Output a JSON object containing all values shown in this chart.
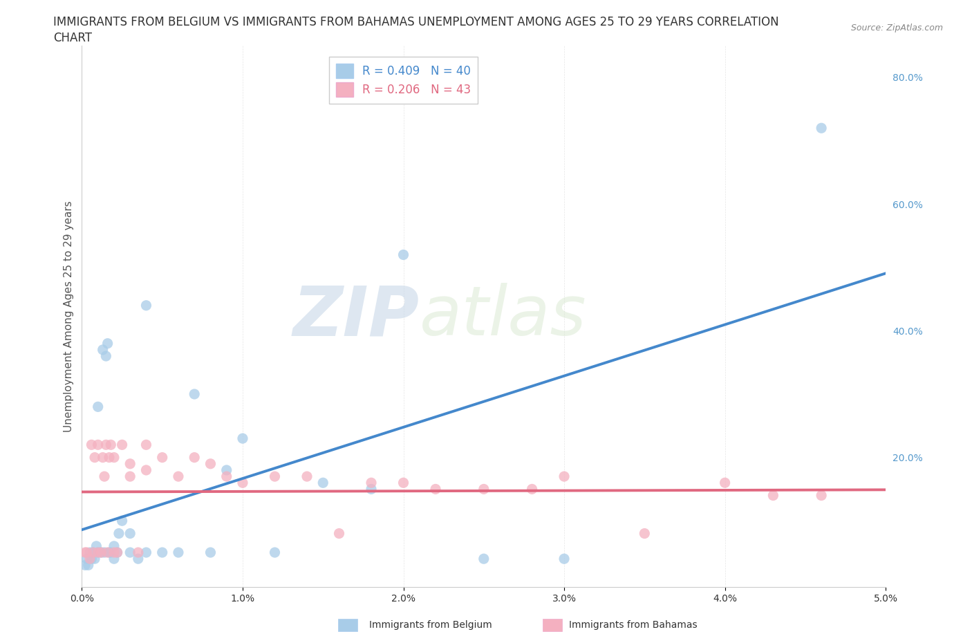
{
  "title_line1": "IMMIGRANTS FROM BELGIUM VS IMMIGRANTS FROM BAHAMAS UNEMPLOYMENT AMONG AGES 25 TO 29 YEARS CORRELATION",
  "title_line2": "CHART",
  "source_text": "Source: ZipAtlas.com",
  "ylabel": "Unemployment Among Ages 25 to 29 years",
  "xlim": [
    0.0,
    0.05
  ],
  "ylim": [
    -0.005,
    0.85
  ],
  "xticks": [
    0.0,
    0.01,
    0.02,
    0.03,
    0.04,
    0.05
  ],
  "xticklabels": [
    "0.0%",
    "1.0%",
    "2.0%",
    "3.0%",
    "4.0%",
    "5.0%"
  ],
  "yticks_right": [
    0.0,
    0.2,
    0.4,
    0.6,
    0.8
  ],
  "yticklabels_right": [
    "",
    "20.0%",
    "40.0%",
    "60.0%",
    "80.0%"
  ],
  "belgium_R": 0.409,
  "belgium_N": 40,
  "bahamas_R": 0.206,
  "bahamas_N": 43,
  "belgium_color": "#a8cce8",
  "bahamas_color": "#f4b0c0",
  "belgium_line_color": "#4488cc",
  "bahamas_line_color": "#e06880",
  "right_axis_color": "#5599cc",
  "background_color": "#ffffff",
  "grid_color": "#cccccc",
  "belgium_x": [
    0.0002,
    0.0003,
    0.0004,
    0.0005,
    0.0006,
    0.0007,
    0.0008,
    0.0009,
    0.001,
    0.001,
    0.0012,
    0.0013,
    0.0014,
    0.0015,
    0.0016,
    0.0017,
    0.0018,
    0.002,
    0.002,
    0.0022,
    0.0023,
    0.0025,
    0.003,
    0.003,
    0.0035,
    0.004,
    0.004,
    0.005,
    0.006,
    0.007,
    0.008,
    0.009,
    0.01,
    0.012,
    0.015,
    0.018,
    0.02,
    0.025,
    0.03,
    0.046
  ],
  "belgium_y": [
    0.03,
    0.04,
    0.03,
    0.05,
    0.04,
    0.05,
    0.04,
    0.06,
    0.05,
    0.28,
    0.05,
    0.37,
    0.05,
    0.36,
    0.38,
    0.05,
    0.05,
    0.04,
    0.06,
    0.05,
    0.08,
    0.1,
    0.05,
    0.08,
    0.04,
    0.05,
    0.44,
    0.05,
    0.05,
    0.3,
    0.05,
    0.18,
    0.23,
    0.05,
    0.16,
    0.15,
    0.52,
    0.04,
    0.04,
    0.72
  ],
  "bahamas_x": [
    0.0002,
    0.0003,
    0.0005,
    0.0006,
    0.0007,
    0.0008,
    0.001,
    0.001,
    0.0012,
    0.0013,
    0.0014,
    0.0015,
    0.0016,
    0.0017,
    0.0018,
    0.002,
    0.002,
    0.0022,
    0.0025,
    0.003,
    0.003,
    0.0035,
    0.004,
    0.004,
    0.005,
    0.006,
    0.007,
    0.008,
    0.009,
    0.01,
    0.012,
    0.014,
    0.016,
    0.018,
    0.02,
    0.022,
    0.025,
    0.028,
    0.03,
    0.035,
    0.04,
    0.043,
    0.046
  ],
  "bahamas_y": [
    0.05,
    0.05,
    0.04,
    0.22,
    0.05,
    0.2,
    0.05,
    0.22,
    0.05,
    0.2,
    0.17,
    0.22,
    0.05,
    0.2,
    0.22,
    0.05,
    0.2,
    0.05,
    0.22,
    0.17,
    0.19,
    0.05,
    0.18,
    0.22,
    0.2,
    0.17,
    0.2,
    0.19,
    0.17,
    0.16,
    0.17,
    0.17,
    0.08,
    0.16,
    0.16,
    0.15,
    0.15,
    0.15,
    0.17,
    0.08,
    0.16,
    0.14,
    0.14
  ],
  "title_fontsize": 12,
  "axis_label_fontsize": 11,
  "tick_fontsize": 10,
  "legend_fontsize": 12,
  "source_fontsize": 9
}
